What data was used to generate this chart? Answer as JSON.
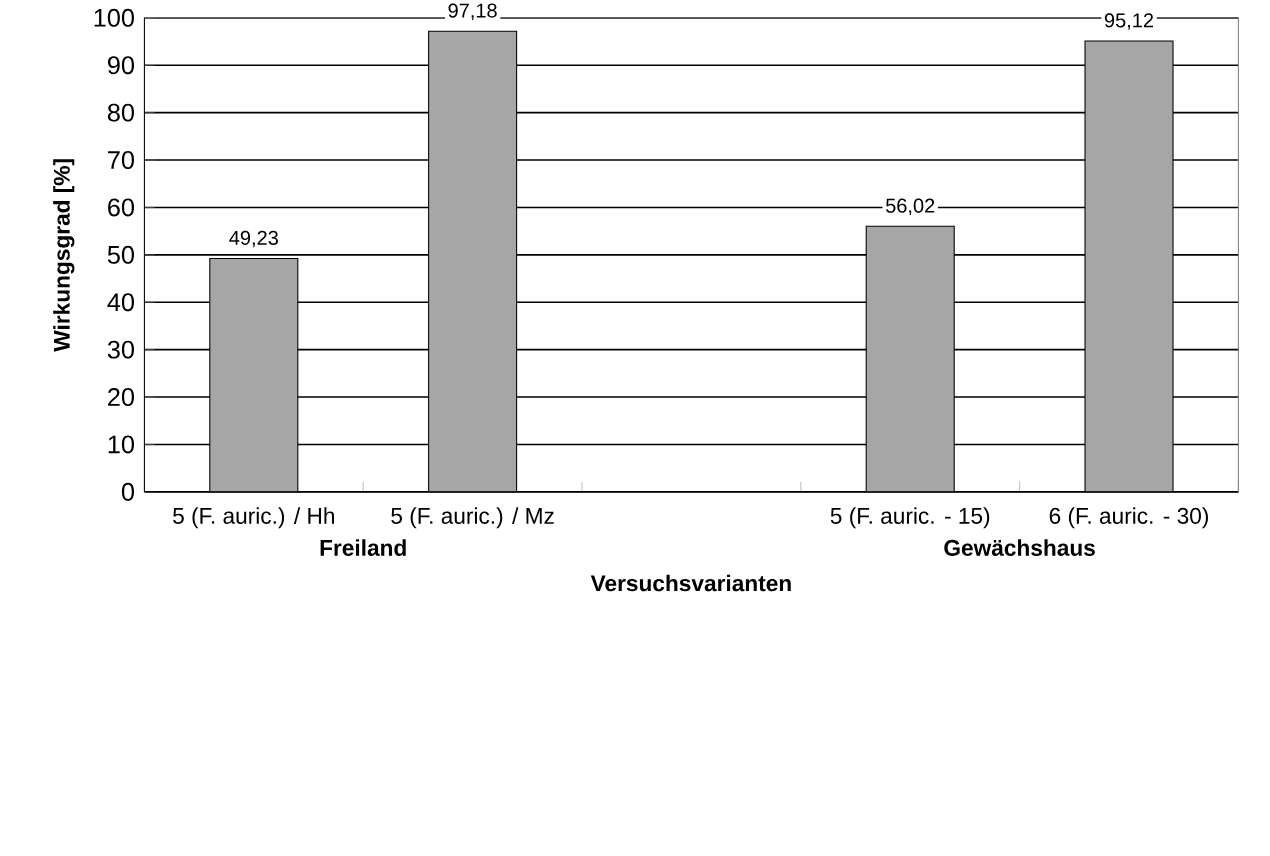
{
  "chart_data": {
    "type": "bar",
    "xlabel": "Versuchsvarianten",
    "ylabel": "Wirkungsgrad [%]",
    "categories": [
      "5 (F. auric.) / Hh",
      "5 (F. auric.) / Mz",
      null,
      "5 (F. auric. - 15)",
      "6 (F. auric. - 30)"
    ],
    "values": [
      49.23,
      97.18,
      null,
      56.02,
      95.12
    ],
    "value_labels": [
      "49,23",
      "97,18",
      null,
      "56,02",
      "95,12"
    ],
    "color": "#a6a6a6",
    "ylim": [
      0,
      100
    ],
    "yticks": [
      0,
      10,
      20,
      30,
      40,
      50,
      60,
      70,
      80,
      90,
      100
    ],
    "grid": "y",
    "annotations": [
      "Freiland",
      "Gewächshaus"
    ]
  }
}
